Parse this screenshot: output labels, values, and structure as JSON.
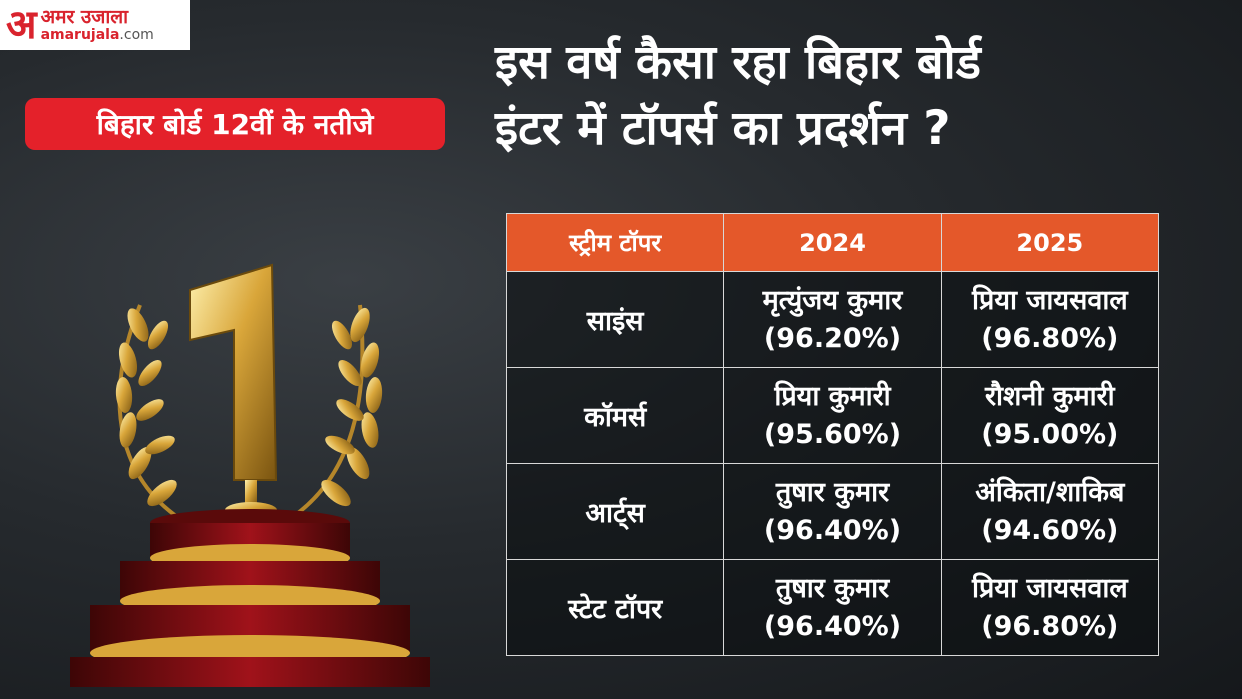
{
  "logo": {
    "mark": "अ",
    "hindi": "अमर उजाला",
    "url_main": "amarujala",
    "url_tld": ".com"
  },
  "badge": "बिहार बोर्ड 12वीं के नतीजे",
  "headline": {
    "line1": "इस वर्ष कैसा रहा बिहार बोर्ड",
    "line2": "इंटर में टॉपर्स का प्रदर्शन ?"
  },
  "trophy": {
    "number": "1"
  },
  "table": {
    "headers": [
      "स्ट्रीम टॉपर",
      "2024",
      "2025"
    ],
    "rows": [
      {
        "stream": "साइंस",
        "y2024": {
          "name": "मृत्युंजय कुमार",
          "pct": "(96.20%)"
        },
        "y2025": {
          "name": "प्रिया जायसवाल",
          "pct": "(96.80%)"
        }
      },
      {
        "stream": "कॉमर्स",
        "y2024": {
          "name": "प्रिया कुमारी",
          "pct": "(95.60%)"
        },
        "y2025": {
          "name": "रौशनी कुमारी",
          "pct": "(95.00%)"
        }
      },
      {
        "stream": "आर्ट्स",
        "y2024": {
          "name": "तुषार कुमार",
          "pct": "(96.40%)"
        },
        "y2025": {
          "name": "अंकिता/शाकिब",
          "pct": "(94.60%)"
        }
      },
      {
        "stream": "स्टेट टॉपर",
        "y2024": {
          "name": "तुषार कुमार",
          "pct": "(96.40%)"
        },
        "y2025": {
          "name": "प्रिया जायसवाल",
          "pct": "(96.80%)"
        }
      }
    ]
  },
  "colors": {
    "accent_red": "#e4212a",
    "header_orange": "#e4582a",
    "gold": "#d4a53a"
  }
}
